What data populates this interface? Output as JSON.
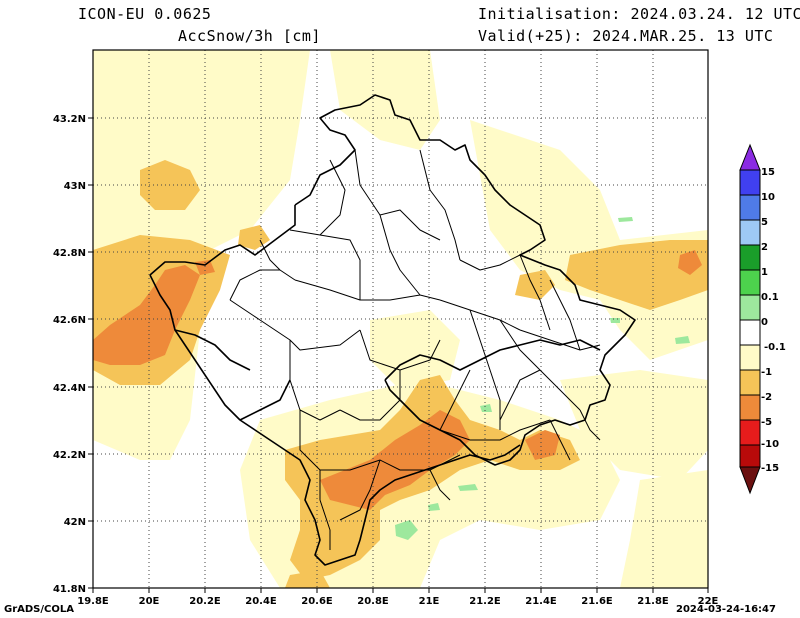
{
  "header": {
    "model": "ICON-EU 0.0625",
    "variable": "AccSnow/3h [cm]",
    "init": "Initialisation: 2024.03.24. 12 UTC",
    "valid": "Valid(+25): 2024.MAR.25. 13 UTC"
  },
  "footer": {
    "software": "GrADS/COLA",
    "timestamp": "2024-03-24-16:47"
  },
  "axes": {
    "x_ticks": [
      "19.8E",
      "20E",
      "20.2E",
      "20.4E",
      "20.6E",
      "20.8E",
      "21E",
      "21.2E",
      "21.4E",
      "21.6E",
      "21.8E",
      "22E"
    ],
    "y_ticks": [
      "43.2N",
      "43N",
      "42.8N",
      "42.6N",
      "42.4N",
      "42.2N",
      "42N",
      "41.8N"
    ],
    "xlim": [
      19.8,
      22.0
    ],
    "ylim": [
      41.8,
      43.4
    ],
    "grid": true
  },
  "colorbar": {
    "labels": [
      "15",
      "10",
      "5",
      "2",
      "1",
      "0.1",
      "0",
      "-0.1",
      "-1",
      "-2",
      "-5",
      "-10",
      "-15"
    ],
    "colors": {
      "top_arrow": "#8a2be2",
      "b15": "#4040f0",
      "b10": "#4f7be8",
      "b5": "#9ec9f5",
      "b2": "#1a9e2a",
      "b1": "#4dd24d",
      "b01": "#9de89d",
      "b0": "#ffffff",
      "bm01": "#fffbc8",
      "bm1": "#f5c458",
      "bm2": "#ee8a3a",
      "bm5": "#e61c1c",
      "bm10": "#b80a0a",
      "bottom_arrow": "#6b1010"
    }
  },
  "fields": {
    "pale": "#fffbc8",
    "light_orange": "#f5c458",
    "orange": "#ee8a3a",
    "light_green": "#9de89d"
  }
}
